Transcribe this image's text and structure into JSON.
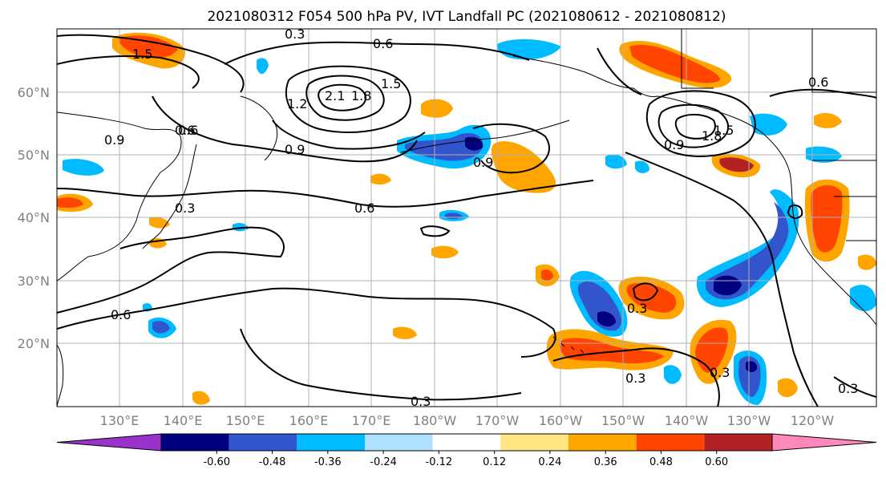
{
  "title": "2021080312 F054 500 hPa PV, IVT Landfall PC (2021080612 - 2021080812)",
  "lat_labels": [
    "60°N",
    "50°N",
    "40°N",
    "30°N",
    "20°N"
  ],
  "lon_labels": [
    "130°E",
    "140°E",
    "150°E",
    "160°E",
    "170°E",
    "180°W",
    "170°W",
    "160°W",
    "150°W",
    "140°W",
    "130°W",
    "120°W"
  ],
  "contour_labels": [
    "0.3",
    "0.6",
    "1.5",
    "0.6",
    "1.2",
    "2.1",
    "1.8",
    "1.5",
    "0.6",
    "0.9",
    "0.9",
    "0.9",
    "0.6",
    "1.8",
    "0.9",
    "1.5",
    "0.6",
    "0.3",
    "0.6",
    "0.3",
    "0.3",
    "0.3",
    "0.3",
    "0.3"
  ],
  "colorbar": {
    "tick_labels": [
      "-0.60",
      "-0.48",
      "-0.36",
      "-0.24",
      "-0.12",
      "0.12",
      "0.24",
      "0.36",
      "0.48",
      "0.60"
    ],
    "colors": [
      "#9933cc",
      "#000080",
      "#3355cc",
      "#00bbff",
      "#b0e0ff",
      "#ffffff",
      "#ffe680",
      "#ffa500",
      "#ff4500",
      "#b22222",
      "#ff88bb"
    ]
  },
  "map": {
    "lat_range": [
      "10°N",
      "70°N"
    ],
    "lon_range": [
      "120°E",
      "110°W"
    ],
    "gridlines": true
  }
}
